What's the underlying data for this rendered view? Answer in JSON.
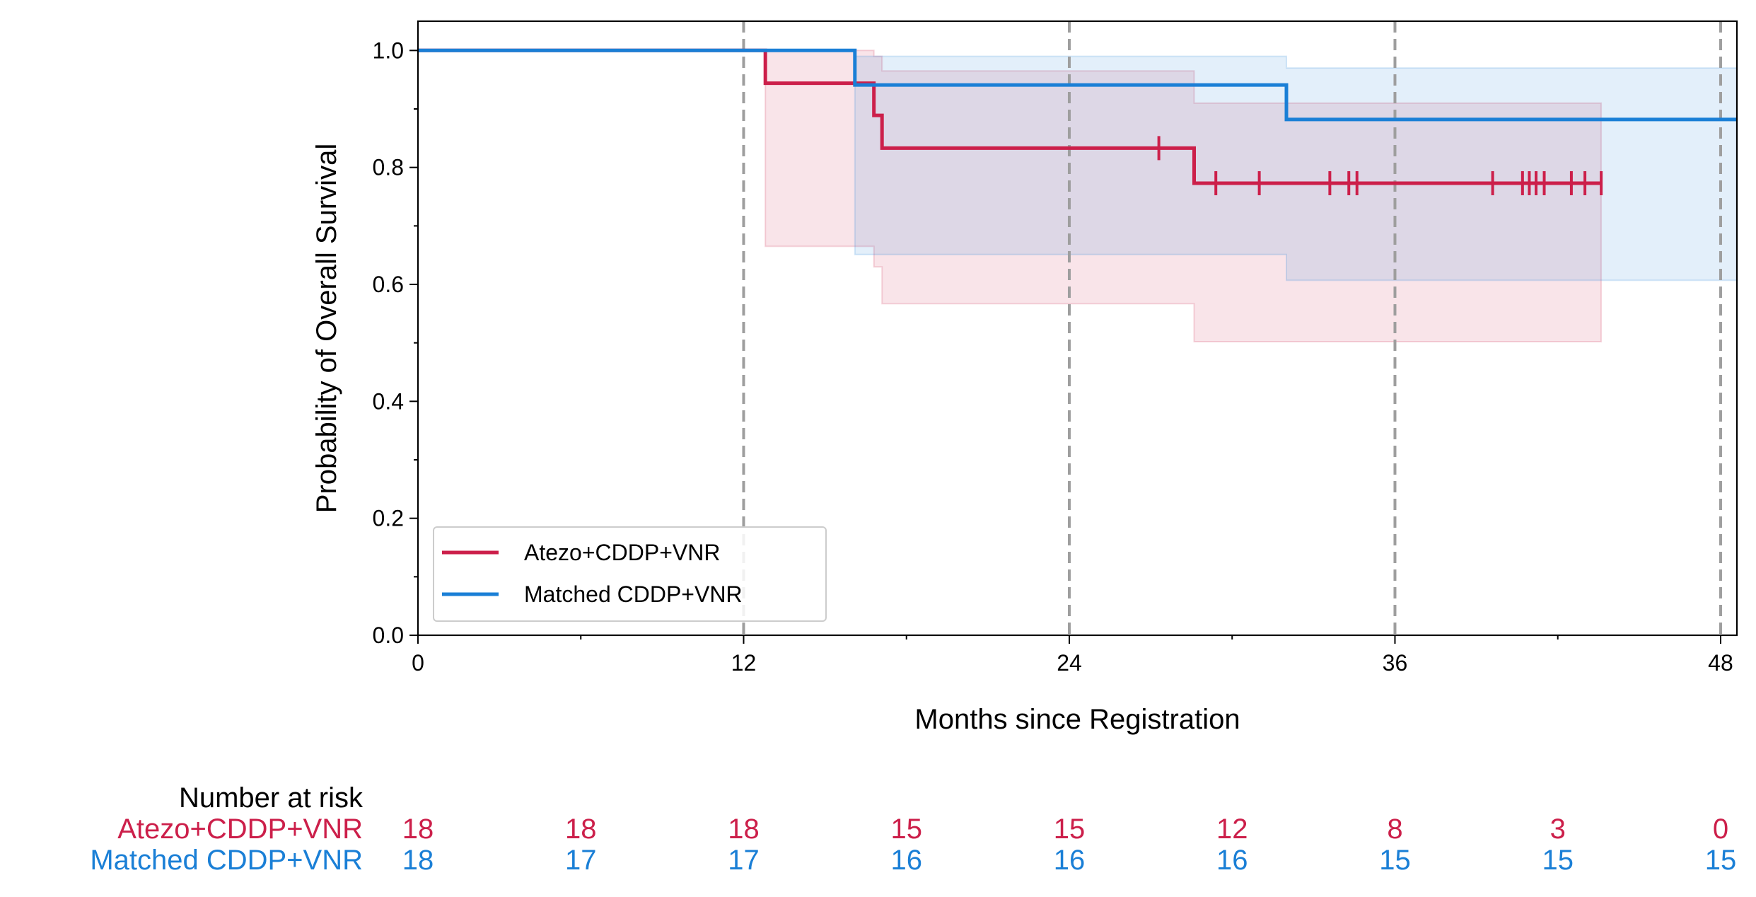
{
  "chart_data": {
    "type": "line",
    "subtype": "kaplan-meier",
    "title": "",
    "xlabel": "Months since Registration",
    "ylabel": "Probability of Overall Survival",
    "xlim": [
      0,
      48.6
    ],
    "ylim": [
      0,
      1.05
    ],
    "xticks": [
      0,
      12,
      24,
      36,
      48
    ],
    "xtick_labels": [
      "0",
      "12",
      "24",
      "36",
      "48"
    ],
    "xminor": [
      6,
      18,
      30,
      42
    ],
    "yticks": [
      0.0,
      0.2,
      0.4,
      0.6,
      0.8,
      1.0
    ],
    "ytick_labels": [
      "0.0",
      "0.2",
      "0.4",
      "0.6",
      "0.8",
      "1.0"
    ],
    "yminor": [
      0.1,
      0.3,
      0.5,
      0.7,
      0.9
    ],
    "reference_lines_x": [
      12,
      24,
      36,
      48
    ],
    "grid": false,
    "legend_position": "lower-left",
    "series": [
      {
        "name": "Atezo+CDDP+VNR",
        "color": "#cc1f4a",
        "steps": [
          [
            0,
            1.0
          ],
          [
            12.8,
            0.944
          ],
          [
            16.8,
            0.889
          ],
          [
            17.1,
            0.833
          ],
          [
            28.6,
            0.773
          ]
        ],
        "end_x": 43.6,
        "ci": [
          [
            0,
            1.0,
            1.0
          ],
          [
            12.8,
            0.665,
            1.0
          ],
          [
            16.8,
            0.63,
            0.99
          ],
          [
            17.1,
            0.567,
            0.965
          ],
          [
            28.6,
            0.502,
            0.91
          ]
        ],
        "censor_x": [
          27.3,
          29.4,
          31.0,
          33.6,
          34.3,
          34.6,
          39.6,
          40.7,
          40.95,
          41.2,
          41.5,
          42.5,
          43.0,
          43.6
        ]
      },
      {
        "name": "Matched CDDP+VNR",
        "color": "#1a7fd6",
        "steps": [
          [
            0,
            1.0
          ],
          [
            16.1,
            0.941
          ],
          [
            32.0,
            0.882
          ]
        ],
        "end_x": 48.6,
        "ci": [
          [
            0,
            1.0,
            1.0
          ],
          [
            16.1,
            0.651,
            0.99
          ],
          [
            32.0,
            0.607,
            0.97
          ]
        ],
        "censor_x": []
      }
    ],
    "risk_table": {
      "header": "Number at risk",
      "times": [
        0,
        6,
        12,
        18,
        24,
        30,
        36,
        42,
        48
      ],
      "rows": [
        {
          "label": "Atezo+CDDP+VNR",
          "color": "#cc1f4a",
          "values": [
            "18",
            "18",
            "18",
            "15",
            "15",
            "12",
            "8",
            "3",
            "0"
          ]
        },
        {
          "label": "Matched CDDP+VNR",
          "color": "#1a7fd6",
          "values": [
            "18",
            "17",
            "17",
            "16",
            "16",
            "16",
            "15",
            "15",
            "15"
          ]
        }
      ]
    }
  }
}
